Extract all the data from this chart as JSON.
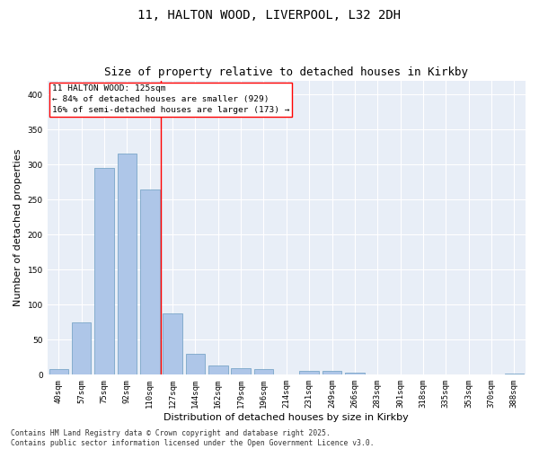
{
  "title_line1": "11, HALTON WOOD, LIVERPOOL, L32 2DH",
  "title_line2": "Size of property relative to detached houses in Kirkby",
  "xlabel": "Distribution of detached houses by size in Kirkby",
  "ylabel": "Number of detached properties",
  "categories": [
    "40sqm",
    "57sqm",
    "75sqm",
    "92sqm",
    "110sqm",
    "127sqm",
    "144sqm",
    "162sqm",
    "179sqm",
    "196sqm",
    "214sqm",
    "231sqm",
    "249sqm",
    "266sqm",
    "283sqm",
    "301sqm",
    "318sqm",
    "335sqm",
    "353sqm",
    "370sqm",
    "388sqm"
  ],
  "values": [
    8,
    75,
    295,
    315,
    265,
    88,
    30,
    13,
    9,
    8,
    0,
    5,
    5,
    3,
    1,
    0,
    0,
    0,
    0,
    0,
    2
  ],
  "bar_color": "#aec6e8",
  "bar_edge_color": "#6a9cc0",
  "red_line_index": 5,
  "ylim": [
    0,
    420
  ],
  "yticks": [
    0,
    50,
    100,
    150,
    200,
    250,
    300,
    350,
    400
  ],
  "bg_color": "#e8eef7",
  "annotation_title": "11 HALTON WOOD: 125sqm",
  "annotation_line2": "← 84% of detached houses are smaller (929)",
  "annotation_line3": "16% of semi-detached houses are larger (173) →",
  "footer_line1": "Contains HM Land Registry data © Crown copyright and database right 2025.",
  "footer_line2": "Contains public sector information licensed under the Open Government Licence v3.0.",
  "title_fontsize": 10,
  "subtitle_fontsize": 9,
  "axis_label_fontsize": 8,
  "tick_fontsize": 6.5,
  "annotation_fontsize": 6.8,
  "footer_fontsize": 5.8
}
